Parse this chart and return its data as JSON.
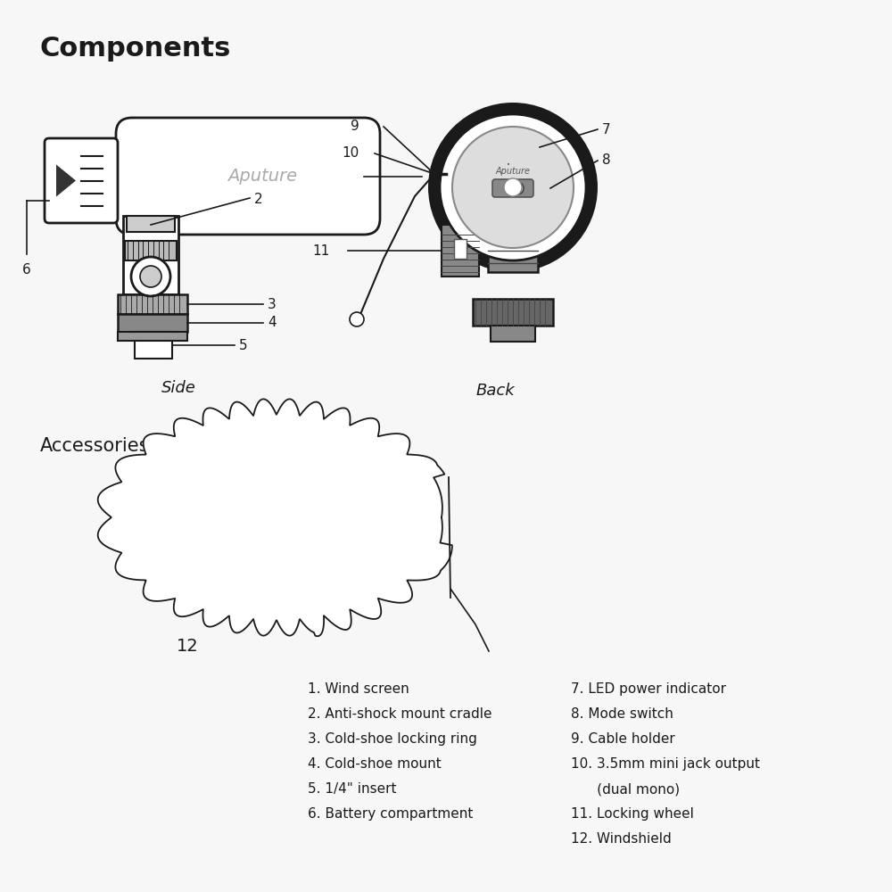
{
  "title": "Components",
  "accessories_title": "Accessories",
  "side_label": "Side",
  "back_label": "Back",
  "bg_color": "#f7f7f7",
  "line_color": "#1a1a1a",
  "text_color": "#1a1a1a",
  "legend_left": [
    "1. Wind screen",
    "2. Anti-shock mount cradle",
    "3. Cold-shoe locking ring",
    "4. Cold-shoe mount",
    "5. 1/4\" insert",
    "6. Battery compartment"
  ],
  "legend_right": [
    "7. LED power indicator",
    "8. Mode switch",
    "9. Cable holder",
    "10. 3.5mm mini jack output",
    "      (dual mono)",
    "11. Locking wheel",
    "12. Windshield"
  ]
}
